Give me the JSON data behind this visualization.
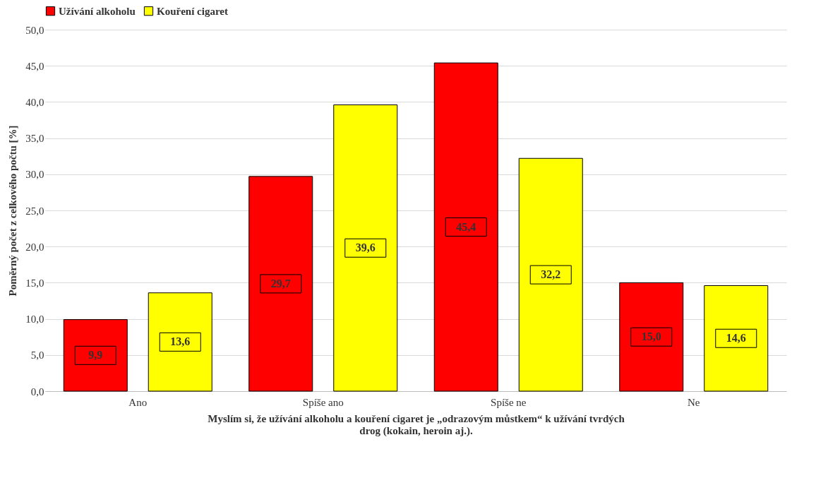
{
  "chart_data": {
    "type": "bar",
    "xlabel": "Myslím si, že užívání  alkoholu  a kouření cigaret je „odrazovým  můstkem“ k užívání  tvrdých drog (kokain, heroin  aj.).",
    "ylabel": "Poměrný  počet z celkového počtu [%]",
    "categories": [
      "Ano",
      "Spíše ano",
      "Spíše ne",
      "Ne"
    ],
    "series": [
      {
        "name": "Užívání alkoholu",
        "color": "#ff0000",
        "values": [
          9.9,
          29.7,
          45.4,
          15.0
        ],
        "value_labels": [
          "9,9",
          "29,7",
          "45,4",
          "15,0"
        ]
      },
      {
        "name": "Kouření cigaret",
        "color": "#ffff00",
        "values": [
          13.6,
          39.6,
          32.2,
          14.6
        ],
        "value_labels": [
          "13,6",
          "39,6",
          "32,2",
          "14,6"
        ]
      }
    ],
    "ylim": [
      0,
      50
    ],
    "yticks": [
      {
        "value": 0,
        "label": "0,0"
      },
      {
        "value": 5,
        "label": "5,0"
      },
      {
        "value": 10,
        "label": "10,0"
      },
      {
        "value": 15,
        "label": "15,0"
      },
      {
        "value": 20,
        "label": "20,0"
      },
      {
        "value": 25,
        "label": "25,0"
      },
      {
        "value": 30,
        "label": "30,0"
      },
      {
        "value": 35,
        "label": "35,0"
      },
      {
        "value": 40,
        "label": "40,0"
      },
      {
        "value": 45,
        "label": "45,0"
      },
      {
        "value": 50,
        "label": "50,0"
      }
    ],
    "grid": "y",
    "legend": "top"
  }
}
